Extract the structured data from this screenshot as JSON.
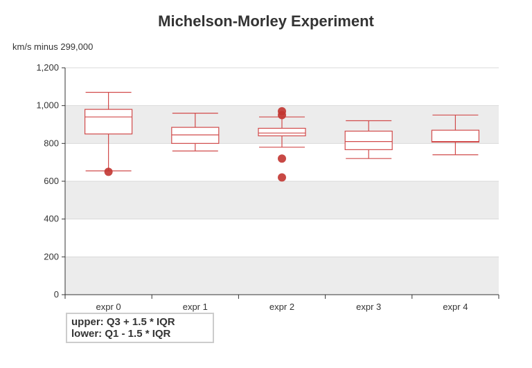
{
  "chart_data": {
    "type": "boxplot",
    "title": "Michelson-Morley Experiment",
    "ylabel": "km/s minus 299,000",
    "ylim": [
      0,
      1200
    ],
    "yticks": [
      0,
      200,
      400,
      600,
      800,
      1000,
      1200
    ],
    "ytick_labels": [
      "0",
      "200",
      "400",
      "600",
      "800",
      "1,000",
      "1,200"
    ],
    "categories": [
      "expr 0",
      "expr 1",
      "expr 2",
      "expr 3",
      "expr 4"
    ],
    "boxes": [
      {
        "category": "expr 0",
        "low": 655,
        "q1": 850,
        "median": 940,
        "q3": 980,
        "high": 1070
      },
      {
        "category": "expr 1",
        "low": 760,
        "q1": 800,
        "median": 845,
        "q3": 885,
        "high": 960
      },
      {
        "category": "expr 2",
        "low": 780,
        "q1": 840,
        "median": 855,
        "q3": 880,
        "high": 940
      },
      {
        "category": "expr 3",
        "low": 720,
        "q1": 767,
        "median": 810,
        "q3": 865,
        "high": 920
      },
      {
        "category": "expr 4",
        "low": 740,
        "q1": 807,
        "median": 810,
        "q3": 870,
        "high": 950
      }
    ],
    "outliers": [
      {
        "category": "expr 0",
        "value": 650
      },
      {
        "category": "expr 2",
        "value": 620
      },
      {
        "category": "expr 2",
        "value": 720
      },
      {
        "category": "expr 2",
        "value": 950
      },
      {
        "category": "expr 2",
        "value": 970
      }
    ],
    "note_lines": [
      "upper: Q3 + 1.5 * IQR",
      "lower: Q1 - 1.5 * IQR"
    ],
    "colors": {
      "box": "#d14a4a",
      "outlier": "#c23531",
      "band": "#ececec",
      "grid": "#d9d9d9",
      "axis": "#333333"
    }
  }
}
